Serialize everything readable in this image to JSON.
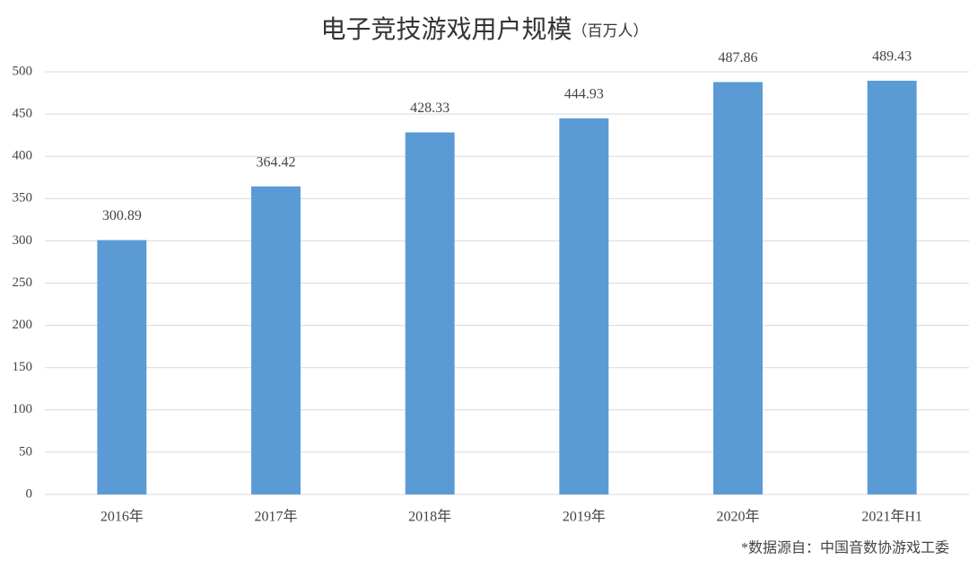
{
  "chart_data": {
    "type": "bar",
    "title": "电子竞技游戏用户规模",
    "subtitle": "（百万人）",
    "categories": [
      "2016年",
      "2017年",
      "2018年",
      "2019年",
      "2020年",
      "2021年H1"
    ],
    "values": [
      300.89,
      364.42,
      428.33,
      444.93,
      487.86,
      489.43
    ],
    "color": "#5b9bd5",
    "ylim": [
      0,
      500
    ],
    "yticks": [
      0,
      50,
      100,
      150,
      200,
      250,
      300,
      350,
      400,
      450,
      500
    ],
    "grid": true,
    "source": "*数据源自：中国音数协游戏工委"
  }
}
